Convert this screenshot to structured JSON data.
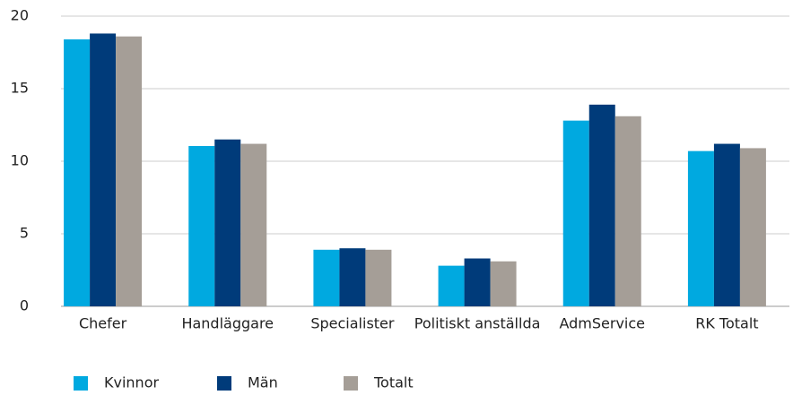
{
  "chart_data": {
    "type": "bar",
    "categories": [
      "Chefer",
      "Handläggare",
      "Specialister",
      "Politiskt anställda",
      "AdmService",
      "RK Totalt"
    ],
    "series": [
      {
        "name": "Kvinnor",
        "color": "#00a9e0",
        "values": [
          18.4,
          11.05,
          3.9,
          2.8,
          12.8,
          10.7
        ]
      },
      {
        "name": "Män",
        "color": "#003b7a",
        "values": [
          18.8,
          11.5,
          4.0,
          3.3,
          13.9,
          11.2
        ]
      },
      {
        "name": "Totalt",
        "color": "#a59e97",
        "values": [
          18.6,
          11.2,
          3.9,
          3.1,
          13.1,
          10.9
        ]
      }
    ],
    "ylim": [
      0,
      20
    ],
    "yticks": [
      0,
      5,
      10,
      15,
      20
    ],
    "grid": true,
    "legend": "bottom"
  }
}
